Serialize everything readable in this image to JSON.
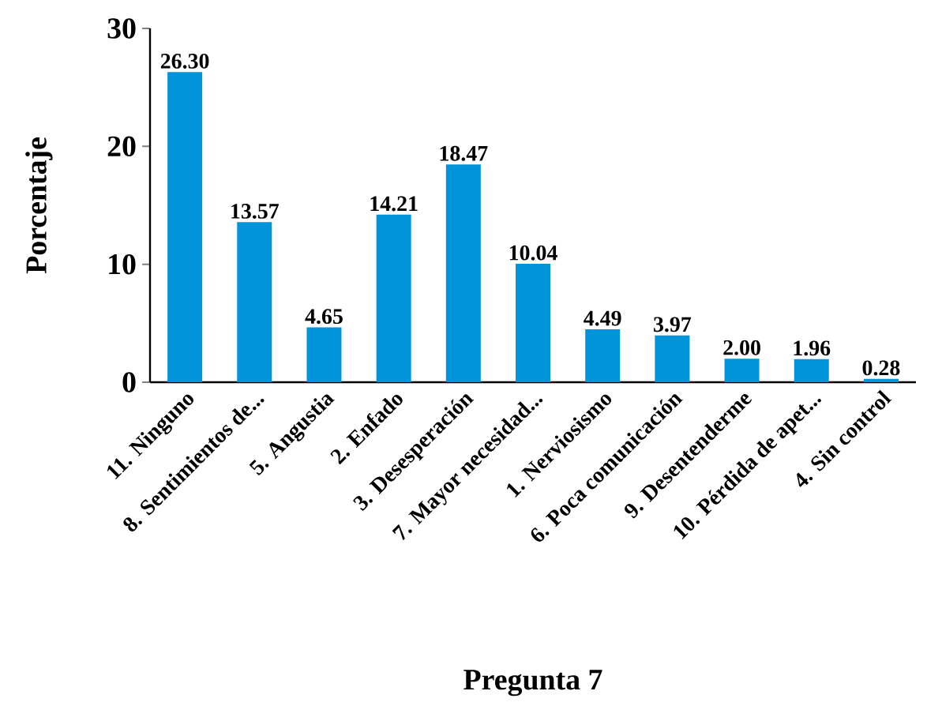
{
  "chart_data": {
    "type": "bar",
    "xlabel": "Pregunta 7",
    "ylabel": "Porcentaje",
    "categories": [
      "11. Ninguno",
      "8. Sentimientos de...",
      "5. Angustia",
      "2. Enfado",
      "3. Desesperación",
      "7. Mayor necesidad...",
      "1. Nerviosismo",
      "6. Poca comunicación",
      "9. Desentenderme",
      "10. Pérdida de apet...",
      "4. Sin control"
    ],
    "values": [
      26.3,
      13.57,
      4.65,
      14.21,
      18.47,
      10.04,
      4.49,
      3.97,
      2.0,
      1.96,
      0.28
    ],
    "value_labels": [
      "26.30",
      "13.57",
      "4.65",
      "14.21",
      "18.47",
      "10.04",
      "4.49",
      "3.97",
      "2.00",
      "1.96",
      "0.28"
    ],
    "color": "#0095da",
    "ylim": [
      0,
      30
    ],
    "yticks": [
      0,
      10,
      20,
      30
    ]
  }
}
